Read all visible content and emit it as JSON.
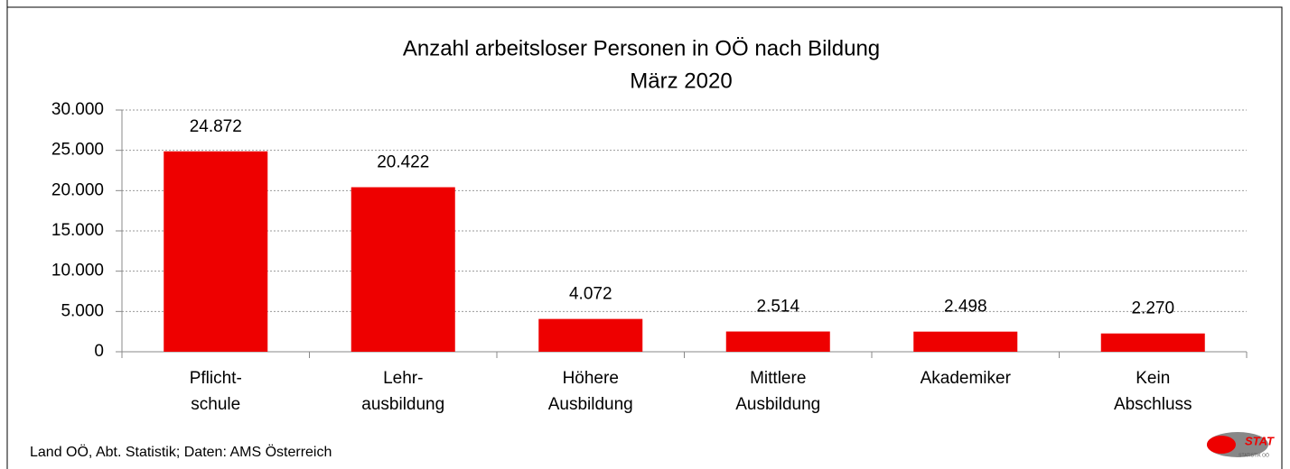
{
  "chart_data": {
    "type": "bar",
    "title": "Anzahl arbeitsloser Personen in OÖ nach Bildung",
    "subtitle": "März 2020",
    "categories": [
      [
        "Pflicht-",
        "schule"
      ],
      [
        "Lehr-",
        "ausbildung"
      ],
      [
        "Höhere",
        "Ausbildung"
      ],
      [
        "Mittlere",
        "Ausbildung"
      ],
      [
        "Akademiker"
      ],
      [
        "Kein",
        "Abschluss"
      ]
    ],
    "values": [
      24872,
      20422,
      4072,
      2514,
      2498,
      2270
    ],
    "value_labels": [
      "24.872",
      "20.422",
      "4.072",
      "2.514",
      "2.498",
      "2.270"
    ],
    "color": "#ee0000",
    "ylim": [
      0,
      30000
    ],
    "yticks": [
      0,
      {
        "value": 5000,
        "label": "5.000"
      },
      {
        "value": 10000,
        "label": "10.000"
      },
      {
        "value": 15000,
        "label": "15.000"
      },
      {
        "value": 20000,
        "label": "20.000"
      },
      {
        "value": 25000,
        "label": "25.000"
      },
      {
        "value": 30000,
        "label": "30.000"
      }
    ],
    "grid": true,
    "source": "Land OÖ, Abt. Statistik; Daten: AMS Österreich",
    "logo_text": "STAT",
    "logo_subtext": "STATISTIK OÖ"
  }
}
